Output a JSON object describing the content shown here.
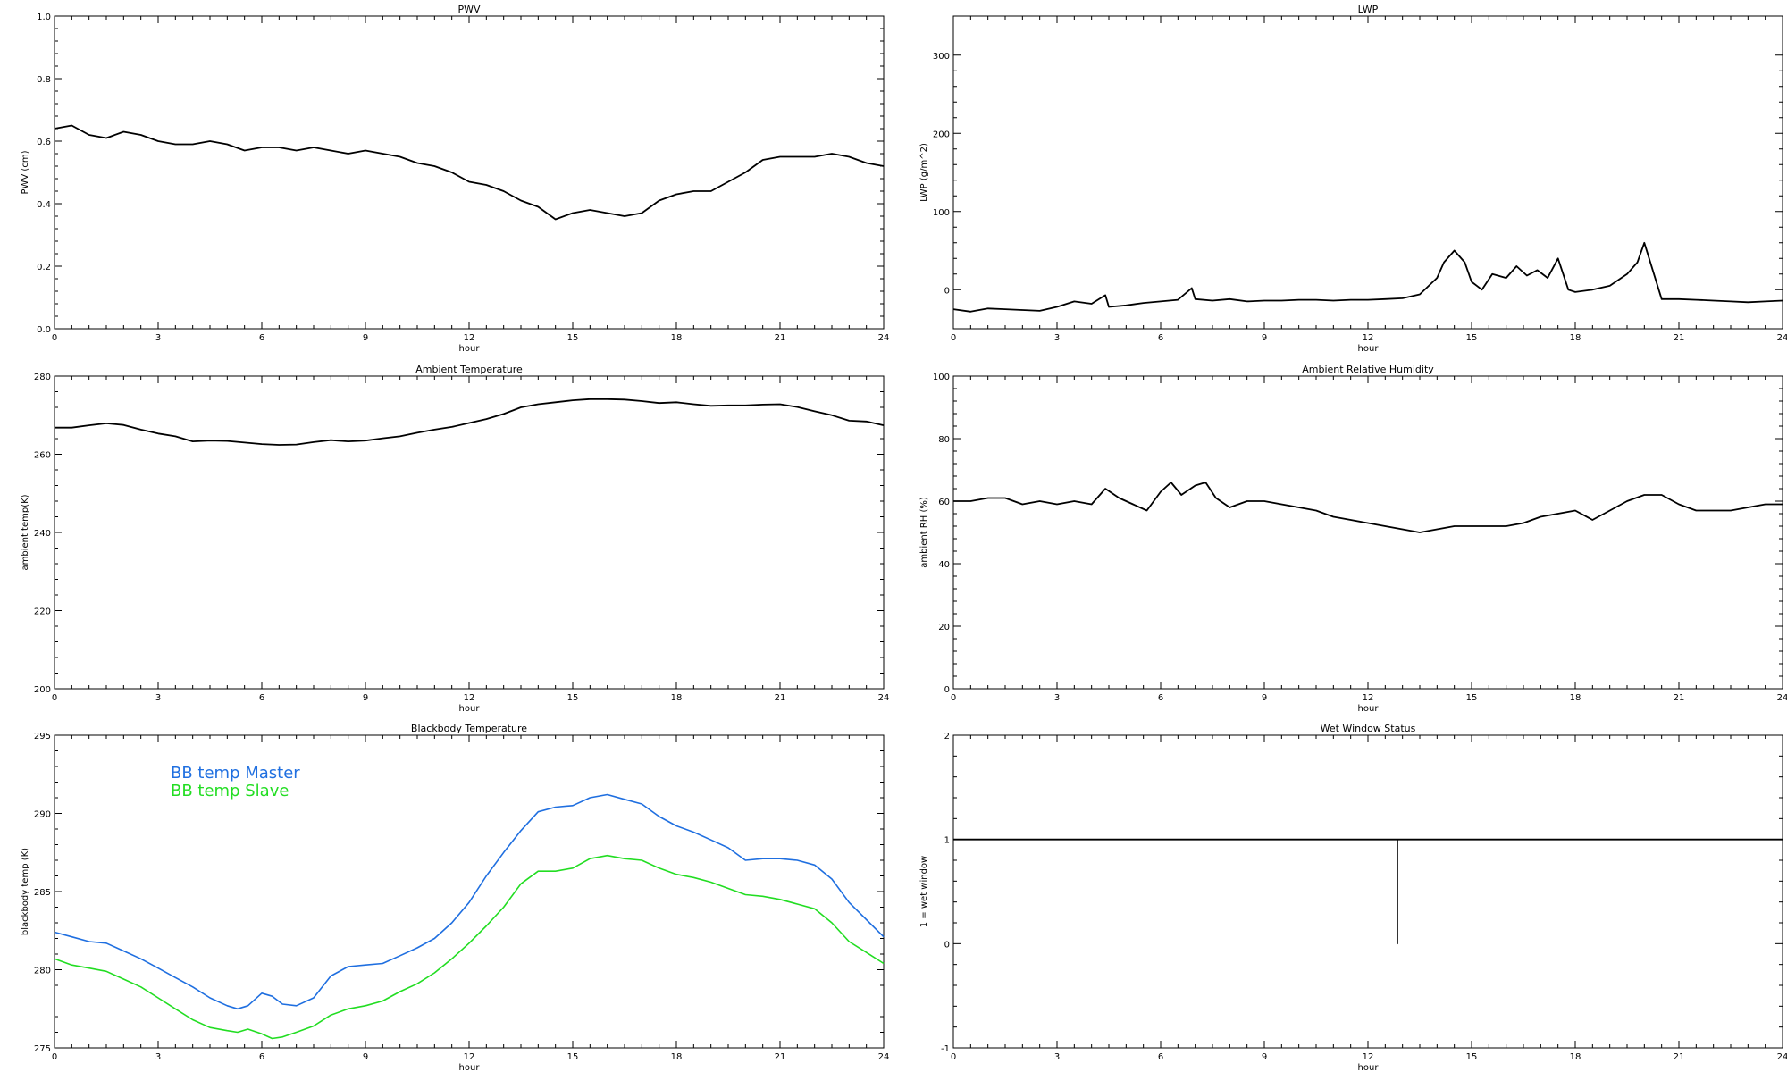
{
  "chart_data": [
    {
      "type": "line",
      "title": "PWV",
      "xlabel": "hour",
      "ylabel": "PWV (cm)",
      "xlim": [
        0,
        24
      ],
      "ylim": [
        0.0,
        1.0
      ],
      "xticks": [
        "0",
        "3",
        "6",
        "9",
        "12",
        "15",
        "18",
        "21",
        "24"
      ],
      "yticks": [
        "0.0",
        "0.2",
        "0.4",
        "0.6",
        "0.8",
        "1.0"
      ],
      "grid": false,
      "series": [
        {
          "color": "#000000",
          "x": [
            0,
            0.5,
            1,
            1.5,
            2,
            2.5,
            3,
            3.5,
            4,
            4.5,
            5,
            5.5,
            6,
            6.5,
            7,
            7.5,
            8,
            8.5,
            9,
            9.5,
            10,
            10.5,
            11,
            11.5,
            12,
            12.5,
            13,
            13.5,
            14,
            14.5,
            15,
            15.5,
            16,
            16.5,
            17,
            17.5,
            18,
            18.5,
            19,
            19.5,
            20,
            20.5,
            21,
            21.5,
            22,
            22.5,
            23,
            23.5,
            24
          ],
          "values": [
            0.64,
            0.65,
            0.62,
            0.61,
            0.63,
            0.62,
            0.6,
            0.59,
            0.59,
            0.6,
            0.59,
            0.57,
            0.58,
            0.58,
            0.57,
            0.58,
            0.57,
            0.56,
            0.57,
            0.56,
            0.55,
            0.53,
            0.52,
            0.5,
            0.47,
            0.46,
            0.44,
            0.41,
            0.39,
            0.35,
            0.37,
            0.38,
            0.37,
            0.36,
            0.37,
            0.41,
            0.43,
            0.44,
            0.44,
            0.47,
            0.5,
            0.54,
            0.55,
            0.55,
            0.55,
            0.56,
            0.55,
            0.53,
            0.52
          ]
        }
      ]
    },
    {
      "type": "line",
      "title": "LWP",
      "xlabel": "hour",
      "ylabel": "LWP (g/m^2)",
      "xlim": [
        0,
        24
      ],
      "ylim": [
        -50,
        350
      ],
      "xticks": [
        "0",
        "3",
        "6",
        "9",
        "12",
        "15",
        "18",
        "21",
        "24"
      ],
      "yticks": [
        "0",
        "100",
        "200",
        "300"
      ],
      "grid": false,
      "series": [
        {
          "color": "#000000",
          "x": [
            0,
            0.5,
            1,
            1.5,
            2,
            2.5,
            3,
            3.5,
            4,
            4.4,
            4.5,
            5,
            5.5,
            6,
            6.5,
            6.9,
            7,
            7.5,
            8,
            8.5,
            9,
            9.5,
            10,
            10.5,
            11,
            11.5,
            12,
            12.5,
            13,
            13.5,
            14,
            14.2,
            14.5,
            14.8,
            15,
            15.3,
            15.6,
            16,
            16.3,
            16.6,
            16.9,
            17.2,
            17.5,
            17.8,
            18,
            18.5,
            19,
            19.5,
            19.8,
            20,
            20.5,
            21,
            21.5,
            22,
            22.5,
            23,
            23.5,
            24
          ],
          "values": [
            -25,
            -28,
            -24,
            -25,
            -26,
            -27,
            -22,
            -15,
            -18,
            -7,
            -22,
            -20,
            -17,
            -15,
            -13,
            2,
            -12,
            -14,
            -12,
            -15,
            -14,
            -14,
            -13,
            -13,
            -14,
            -13,
            -13,
            -12,
            -11,
            -6,
            15,
            35,
            50,
            35,
            10,
            0,
            20,
            15,
            30,
            18,
            25,
            15,
            40,
            0,
            -3,
            0,
            5,
            20,
            35,
            60,
            -12,
            -12,
            -13,
            -14,
            -15,
            -16,
            -15,
            -14
          ]
        }
      ]
    },
    {
      "type": "line",
      "title": "Ambient Temperature",
      "xlabel": "hour",
      "ylabel": "ambient temp(K)",
      "xlim": [
        0,
        24
      ],
      "ylim": [
        200,
        280
      ],
      "xticks": [
        "0",
        "3",
        "6",
        "9",
        "12",
        "15",
        "18",
        "21",
        "24"
      ],
      "yticks": [
        "200",
        "220",
        "240",
        "260",
        "280"
      ],
      "grid": false,
      "series": [
        {
          "color": "#000000",
          "x": [
            0,
            0.5,
            1,
            1.5,
            2,
            2.5,
            3,
            3.5,
            4,
            4.5,
            5,
            5.5,
            6,
            6.5,
            7,
            7.5,
            8,
            8.5,
            9,
            9.5,
            10,
            10.5,
            11,
            11.5,
            12,
            12.5,
            13,
            13.5,
            14,
            14.5,
            15,
            15.5,
            16,
            16.5,
            17,
            17.5,
            18,
            18.5,
            19,
            19.5,
            20,
            20.5,
            21,
            21.5,
            22,
            22.5,
            23,
            23.5,
            24
          ],
          "values": [
            266.8,
            266.8,
            267.4,
            267.9,
            267.5,
            266.3,
            265.3,
            264.6,
            263.3,
            263.5,
            263.4,
            263.0,
            262.6,
            262.4,
            262.5,
            263.1,
            263.6,
            263.3,
            263.5,
            264.1,
            264.6,
            265.5,
            266.3,
            267.0,
            268.0,
            269.0,
            270.3,
            272.0,
            272.8,
            273.3,
            273.8,
            274.1,
            274.1,
            274.0,
            273.6,
            273.1,
            273.3,
            272.8,
            272.4,
            272.5,
            272.5,
            272.7,
            272.8,
            272.1,
            271.0,
            270.0,
            268.6,
            268.4,
            267.4
          ]
        }
      ]
    },
    {
      "type": "line",
      "title": "Ambient Relative Humidity",
      "xlabel": "hour",
      "ylabel": "ambient RH (%)",
      "xlim": [
        0,
        24
      ],
      "ylim": [
        0,
        100
      ],
      "xticks": [
        "0",
        "3",
        "6",
        "9",
        "12",
        "15",
        "18",
        "21",
        "24"
      ],
      "yticks": [
        "0",
        "20",
        "40",
        "60",
        "80",
        "100"
      ],
      "grid": false,
      "series": [
        {
          "color": "#000000",
          "x": [
            0,
            0.5,
            1,
            1.5,
            2,
            2.5,
            3,
            3.5,
            4,
            4.4,
            4.8,
            5.2,
            5.6,
            6,
            6.3,
            6.6,
            7,
            7.3,
            7.6,
            8,
            8.5,
            9,
            9.5,
            10,
            10.5,
            11,
            11.5,
            12,
            12.5,
            13,
            13.5,
            14,
            14.5,
            15,
            15.5,
            16,
            16.5,
            17,
            17.5,
            18,
            18.5,
            19,
            19.5,
            20,
            20.5,
            21,
            21.5,
            22,
            22.5,
            23,
            23.5,
            24
          ],
          "values": [
            60,
            60,
            61,
            61,
            59,
            60,
            59,
            60,
            59,
            64,
            61,
            59,
            57,
            63,
            66,
            62,
            65,
            66,
            61,
            58,
            60,
            60,
            59,
            58,
            57,
            55,
            54,
            53,
            52,
            51,
            50,
            51,
            52,
            52,
            52,
            52,
            53,
            55,
            56,
            57,
            54,
            57,
            60,
            62,
            62,
            59,
            57,
            57,
            57,
            58,
            59,
            59
          ]
        }
      ]
    },
    {
      "type": "line",
      "title": "Blackbody Temperature",
      "xlabel": "hour",
      "ylabel": "blackbody temp (K)",
      "xlim": [
        0,
        24
      ],
      "ylim": [
        275,
        295
      ],
      "xticks": [
        "0",
        "3",
        "6",
        "9",
        "12",
        "15",
        "18",
        "21",
        "24"
      ],
      "yticks": [
        "275",
        "280",
        "285",
        "290",
        "295"
      ],
      "grid": false,
      "legend": "top-left",
      "series": [
        {
          "name": "BB temp Master",
          "color": "#1f6fe0",
          "x": [
            0,
            0.5,
            1,
            1.5,
            2,
            2.5,
            3,
            3.5,
            4,
            4.5,
            5,
            5.3,
            5.6,
            6,
            6.3,
            6.6,
            7,
            7.5,
            8,
            8.5,
            9,
            9.5,
            10,
            10.5,
            11,
            11.5,
            12,
            12.5,
            13,
            13.5,
            14,
            14.5,
            15,
            15.5,
            16,
            16.5,
            17,
            17.5,
            18,
            18.5,
            19,
            19.5,
            20,
            20.5,
            21,
            21.5,
            22,
            22.5,
            23,
            23.5,
            24
          ],
          "values": [
            282.4,
            282.1,
            281.8,
            281.7,
            281.2,
            280.7,
            280.1,
            279.5,
            278.9,
            278.2,
            277.7,
            277.5,
            277.7,
            278.5,
            278.3,
            277.8,
            277.7,
            278.2,
            279.6,
            280.2,
            280.3,
            280.4,
            280.9,
            281.4,
            282.0,
            283.0,
            284.3,
            286.0,
            287.5,
            288.9,
            290.1,
            290.4,
            290.5,
            291.0,
            291.2,
            290.9,
            290.6,
            289.8,
            289.2,
            288.8,
            288.3,
            287.8,
            287.0,
            287.1,
            287.1,
            287.0,
            286.7,
            285.8,
            284.3,
            283.2,
            282.1
          ]
        },
        {
          "name": "BB temp Slave",
          "color": "#22dd22",
          "x": [
            0,
            0.5,
            1,
            1.5,
            2,
            2.5,
            3,
            3.5,
            4,
            4.5,
            5,
            5.3,
            5.6,
            6,
            6.3,
            6.6,
            7,
            7.5,
            8,
            8.5,
            9,
            9.5,
            10,
            10.5,
            11,
            11.5,
            12,
            12.5,
            13,
            13.5,
            14,
            14.5,
            15,
            15.5,
            16,
            16.5,
            17,
            17.5,
            18,
            18.5,
            19,
            19.5,
            20,
            20.5,
            21,
            21.5,
            22,
            22.5,
            23,
            23.5,
            24
          ],
          "values": [
            280.7,
            280.3,
            280.1,
            279.9,
            279.4,
            278.9,
            278.2,
            277.5,
            276.8,
            276.3,
            276.1,
            276.0,
            276.2,
            275.9,
            275.6,
            275.7,
            276.0,
            276.4,
            277.1,
            277.5,
            277.7,
            278.0,
            278.6,
            279.1,
            279.8,
            280.7,
            281.7,
            282.8,
            284.0,
            285.5,
            286.3,
            286.3,
            286.5,
            287.1,
            287.3,
            287.1,
            287.0,
            286.5,
            286.1,
            285.9,
            285.6,
            285.2,
            284.8,
            284.7,
            284.5,
            284.2,
            283.9,
            283.0,
            281.8,
            281.1,
            280.4
          ]
        }
      ]
    },
    {
      "type": "line",
      "title": "Wet Window Status",
      "xlabel": "hour",
      "ylabel": "1 = wet window",
      "xlim": [
        0,
        24
      ],
      "ylim": [
        -1,
        2
      ],
      "xticks": [
        "0",
        "3",
        "6",
        "9",
        "12",
        "15",
        "18",
        "21",
        "24"
      ],
      "yticks": [
        "-1",
        "0",
        "1",
        "2"
      ],
      "grid": false,
      "series": [
        {
          "color": "#000000",
          "x": [
            0,
            12.85,
            12.85,
            12.85,
            24
          ],
          "values": [
            1,
            1,
            0,
            1,
            1
          ]
        }
      ]
    }
  ]
}
